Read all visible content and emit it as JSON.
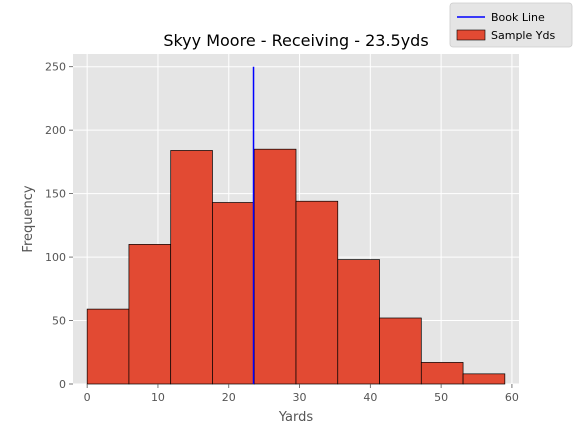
{
  "chart_data": {
    "type": "bar",
    "title": "Skyy Moore - Receiving - 23.5yds",
    "xlabel": "Yards",
    "ylabel": "Frequency",
    "xlim": [
      -2,
      61
    ],
    "ylim": [
      0,
      260
    ],
    "xticks": [
      0,
      10,
      20,
      30,
      40,
      50,
      60
    ],
    "yticks": [
      0,
      50,
      100,
      150,
      200,
      250
    ],
    "grid": true,
    "legend_position": "top-right",
    "bins": [
      {
        "start": 0.0,
        "end": 5.9,
        "count": 59
      },
      {
        "start": 5.9,
        "end": 11.8,
        "count": 110
      },
      {
        "start": 11.8,
        "end": 17.7,
        "count": 184
      },
      {
        "start": 17.7,
        "end": 23.6,
        "count": 143
      },
      {
        "start": 23.6,
        "end": 29.5,
        "count": 185
      },
      {
        "start": 29.5,
        "end": 35.4,
        "count": 144
      },
      {
        "start": 35.4,
        "end": 41.3,
        "count": 98
      },
      {
        "start": 41.3,
        "end": 47.2,
        "count": 52
      },
      {
        "start": 47.2,
        "end": 53.1,
        "count": 17
      },
      {
        "start": 53.1,
        "end": 59.0,
        "count": 8
      }
    ],
    "series": [
      {
        "name": "Book Line",
        "type": "vline",
        "x": 23.5,
        "y_range": [
          0,
          250
        ],
        "color": "#0000ff"
      },
      {
        "name": "Sample Yds",
        "type": "histogram",
        "color": "#e24a33",
        "edge_color": "#000000"
      }
    ],
    "background_color": "#e5e5e5",
    "grid_color": "#ffffff",
    "text_color": "#555555",
    "title_color": "#000000"
  }
}
